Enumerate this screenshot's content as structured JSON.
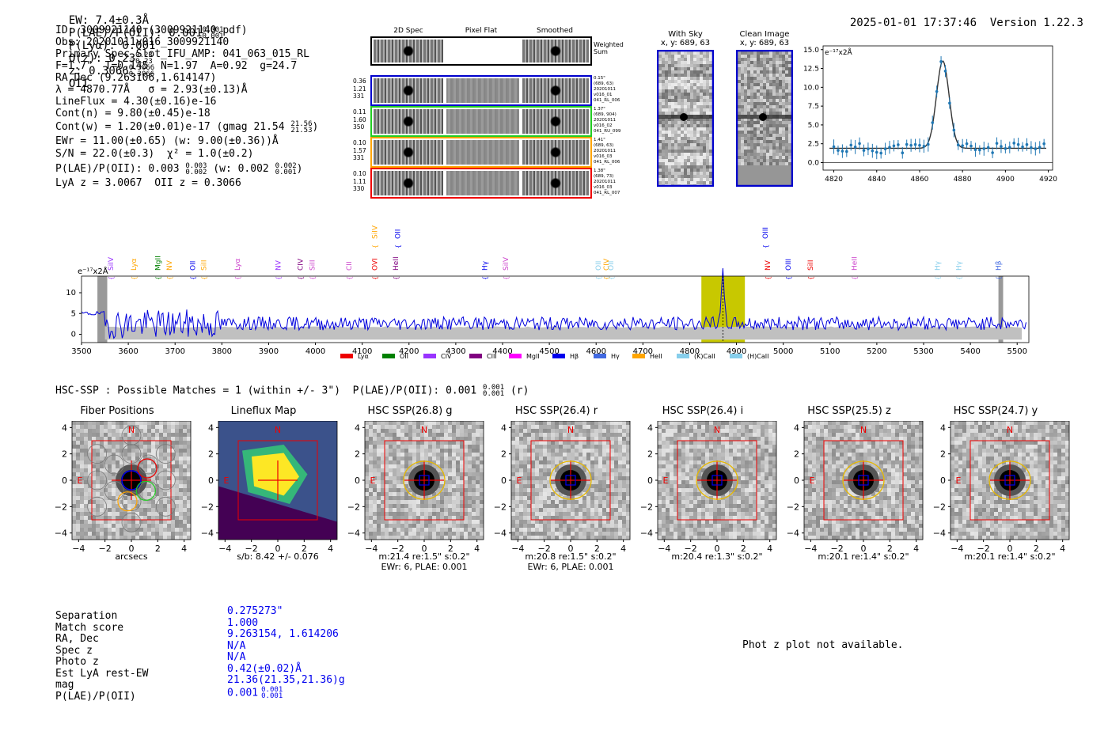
{
  "header": {
    "ew": "EW: 7.4±0.3Å",
    "plae_poii": "P(LAE)/P(OII): 0.001",
    "plae_sup": "0.001",
    "plae_sub": "0.001",
    "plya": "P(Lyα): 0.001",
    "qz": "Q(z): 0.23",
    "qz_sup": "0.23",
    "qz_sub": "0.23",
    "z": "z: 0.3066",
    "z_sup": "0.3066",
    "z_sub": "0.3066",
    "z_line": "OII",
    "timestamp": "2025-01-01 17:37:46",
    "version": "Version 1.22.3"
  },
  "info": {
    "id": "ID: 3009921140 (3009921140.pdf)",
    "obs": "Obs: 20201011v016_3009921140",
    "primary": "Primary Spec_Slot_IFU_AMP: 041_063_015_RL",
    "fwhm": "F=1.7\"  T=0.145  N=1.97  A=0.92  g=24.7",
    "radec": "RA,Dec (9.263106,1.614147)",
    "lambda": "λ = 4870.77Å   σ = 2.93(±0.13)Å",
    "lineflux": "LineFlux = 4.30(±0.16)e-16",
    "contn": "Cont(n) = 9.80(±0.45)e-18",
    "contw": "Cont(w) = 1.20(±0.01)e-17 (gmag 21.54",
    "contw_sup": "21.56",
    "contw_sub": "21.53",
    "ewr": "EWr = 11.00(±0.65) (w: 9.00(±0.36))Å",
    "sn": "S/N = 22.0(±0.3)  χ² = 1.0(±0.2)",
    "plae": "P(LAE)/P(OII): 0.003",
    "plae_sup": "0.003",
    "plae_sub": "0.002",
    "plae_w": "(w: 0.002",
    "plae_w_sup": "0.002",
    "plae_w_sub": "0.001",
    "lyaz": "LyA z = 3.0067  OII z = 0.3066"
  },
  "cutouts": {
    "col_headers": [
      "2D Spec",
      "Pixel Flat",
      "Smoothed"
    ],
    "weighted_label": "Weighted Sum",
    "rows": [
      {
        "stats": [
          "0.36",
          "1.21",
          "331"
        ],
        "meta": [
          "0.15\"",
          "(689, 63)",
          "20201011",
          "v016_01",
          "041_RL_006"
        ],
        "color": "#0000cc"
      },
      {
        "stats": [
          "0.11",
          "1.60",
          "350"
        ],
        "meta": [
          "1.37\"",
          "(689, 904)",
          "20201011",
          "v016_02",
          "041_RU_099"
        ],
        "color": "#22cc22"
      },
      {
        "stats": [
          "0.10",
          "1.57",
          "331"
        ],
        "meta": [
          "1.41\"",
          "(689, 63)",
          "20201011",
          "v016_03",
          "041_RL_006"
        ],
        "color": "#ffa500"
      },
      {
        "stats": [
          "0.10",
          "1.11",
          "330"
        ],
        "meta": [
          "1.38\"",
          "(689, 73)",
          "20201011",
          "v016_03",
          "041_RL_007"
        ],
        "color": "#ee0000"
      }
    ]
  },
  "sky_panels": {
    "with_sky": {
      "title": "With Sky",
      "coords": "x, y: 689, 63"
    },
    "clean": {
      "title": "Clean Image",
      "coords": "x, y: 689, 63"
    }
  },
  "line_fit": {
    "unit_label": "e⁻¹⁷x2Å",
    "y_ticks": [
      "0.0",
      "2.5",
      "5.0",
      "7.5",
      "10.0",
      "12.5",
      "15.0"
    ],
    "x_ticks": [
      "4820",
      "4840",
      "4860",
      "4880",
      "4900",
      "4920"
    ]
  },
  "spectrum": {
    "unit_label": "e⁻¹⁷x2Å",
    "y_ticks": [
      "0",
      "5",
      "10"
    ],
    "x_ticks": [
      "3500",
      "3600",
      "3700",
      "3800",
      "3900",
      "4000",
      "4100",
      "4200",
      "4300",
      "4400",
      "4500",
      "4600",
      "4700",
      "4800",
      "4900",
      "5000",
      "5100",
      "5200",
      "5300",
      "5400",
      "5500"
    ],
    "line_markers": [
      {
        "label": "SiIV",
        "color": "#9933ff",
        "wl": 3563,
        "high": false
      },
      {
        "label": "Lyα",
        "color": "#ffa500",
        "wl": 3612,
        "high": false
      },
      {
        "label": "MgII",
        "color": "#008000",
        "wl": 3663,
        "high": false
      },
      {
        "label": "NV",
        "color": "#ffa500",
        "wl": 3688,
        "high": false
      },
      {
        "label": "OII",
        "color": "#0000ee",
        "wl": 3738,
        "high": false
      },
      {
        "label": "SiII",
        "color": "#ffa500",
        "wl": 3761,
        "high": false
      },
      {
        "label": "Lyα",
        "color": "#cc44cc",
        "wl": 3833,
        "high": false
      },
      {
        "label": "NV",
        "color": "#9933ff",
        "wl": 3920,
        "high": false
      },
      {
        "label": "CIV",
        "color": "#800080",
        "wl": 3968,
        "high": false
      },
      {
        "label": "SiII",
        "color": "#cc44cc",
        "wl": 3993,
        "high": false
      },
      {
        "label": "CII",
        "color": "#cc44cc",
        "wl": 4072,
        "high": false
      },
      {
        "label": "SiIV",
        "color": "#ffa500",
        "wl": 4127,
        "high": true
      },
      {
        "label": "OVI",
        "color": "#ee0000",
        "wl": 4127,
        "high": false
      },
      {
        "label": "OII",
        "color": "#0000ee",
        "wl": 4176,
        "high": true
      },
      {
        "label": "HeII",
        "color": "#800080",
        "wl": 4172,
        "high": false
      },
      {
        "label": "Hγ",
        "color": "#0000ee",
        "wl": 4362,
        "high": false
      },
      {
        "label": "SiIV",
        "color": "#cc44cc",
        "wl": 4407,
        "high": false
      },
      {
        "label": "OII",
        "color": "#87ceeb",
        "wl": 4605,
        "high": false
      },
      {
        "label": "CIV",
        "color": "#ffa500",
        "wl": 4622,
        "high": false
      },
      {
        "label": "OII",
        "color": "#87ceeb",
        "wl": 4632,
        "high": false
      },
      {
        "label": "OIII",
        "color": "#0000ee",
        "wl": 4962,
        "high": true
      },
      {
        "label": "NV",
        "color": "#ee0000",
        "wl": 4967,
        "high": false
      },
      {
        "label": "OIII",
        "color": "#0000ee",
        "wl": 5011,
        "high": false
      },
      {
        "label": "SiII",
        "color": "#ee0000",
        "wl": 5058,
        "high": false
      },
      {
        "label": "HeII",
        "color": "#cc44cc",
        "wl": 5152,
        "high": false
      },
      {
        "label": "Hγ",
        "color": "#87ceeb",
        "wl": 5330,
        "high": false
      },
      {
        "label": "Hγ",
        "color": "#87ceeb",
        "wl": 5375,
        "high": false
      },
      {
        "label": "Hβ",
        "color": "#4169e1",
        "wl": 5460,
        "high": false
      }
    ],
    "legend": [
      {
        "label": "Lyα",
        "color": "#ee0000"
      },
      {
        "label": "OII",
        "color": "#008000"
      },
      {
        "label": "CIV",
        "color": "#9933ff"
      },
      {
        "label": "CIII",
        "color": "#800080"
      },
      {
        "label": "MgII",
        "color": "#ff00ff"
      },
      {
        "label": "Hβ",
        "color": "#0000ee"
      },
      {
        "label": "Hγ",
        "color": "#4169e1"
      },
      {
        "label": "HeII",
        "color": "#ffa500"
      },
      {
        "label": "(K)CaII",
        "color": "#87ceeb"
      },
      {
        "label": "(H)CaII",
        "color": "#87ceeb"
      }
    ]
  },
  "hsc": {
    "heading": "HSC-SSP : Possible Matches = 1 (within +/- 3\")  P(LAE)/P(OII): 0.001",
    "heading_sup": "0.001",
    "heading_sub": "0.001",
    "heading_tail": "(r)",
    "axis_ticks": [
      "4",
      "2",
      "0",
      "−2",
      "−4"
    ],
    "x_axis_ticks": [
      "−4",
      "−2",
      "0",
      "2",
      "4"
    ],
    "north": "N",
    "east": "E",
    "panels": [
      {
        "title": "Fiber Positions",
        "caption1": "arcsecs",
        "caption2": ""
      },
      {
        "title": "Lineflux Map",
        "caption1": "s/b: 8.42 +/- 0.076",
        "caption2": ""
      },
      {
        "title": "HSC SSP(26.8) g",
        "caption1": "m:21.4  re:1.5\"  s:0.2\"",
        "caption2": "EWr: 6, PLAE: 0.001"
      },
      {
        "title": "HSC SSP(26.4) r",
        "caption1": "m:20.8  re:1.5\"  s:0.2\"",
        "caption2": "EWr: 6, PLAE: 0.001"
      },
      {
        "title": "HSC SSP(26.4) i",
        "caption1": "m:20.4  re:1.3\"  s:0.2\"",
        "caption2": ""
      },
      {
        "title": "HSC SSP(25.5) z",
        "caption1": "m:20.1  re:1.4\"  s:0.2\"",
        "caption2": ""
      },
      {
        "title": "HSC SSP(24.7) y",
        "caption1": "m:20.1  re:1.4\"  s:0.2\"",
        "caption2": ""
      }
    ]
  },
  "match": {
    "labels": [
      "Separation",
      "Match score",
      "RA, Dec",
      "Spec z",
      "Photo z",
      "Est LyA rest-EW",
      "mag",
      "P(LAE)/P(OII)"
    ],
    "values": [
      "0.275273\"",
      "1.000",
      "9.263154, 1.614206",
      "N/A",
      "N/A",
      "0.42(±0.02)Å",
      "21.36(21.35,21.36)g",
      "0.001"
    ],
    "plae_sup": "0.001",
    "plae_sub": "0.001",
    "photz_msg": "Phot z plot not available."
  }
}
